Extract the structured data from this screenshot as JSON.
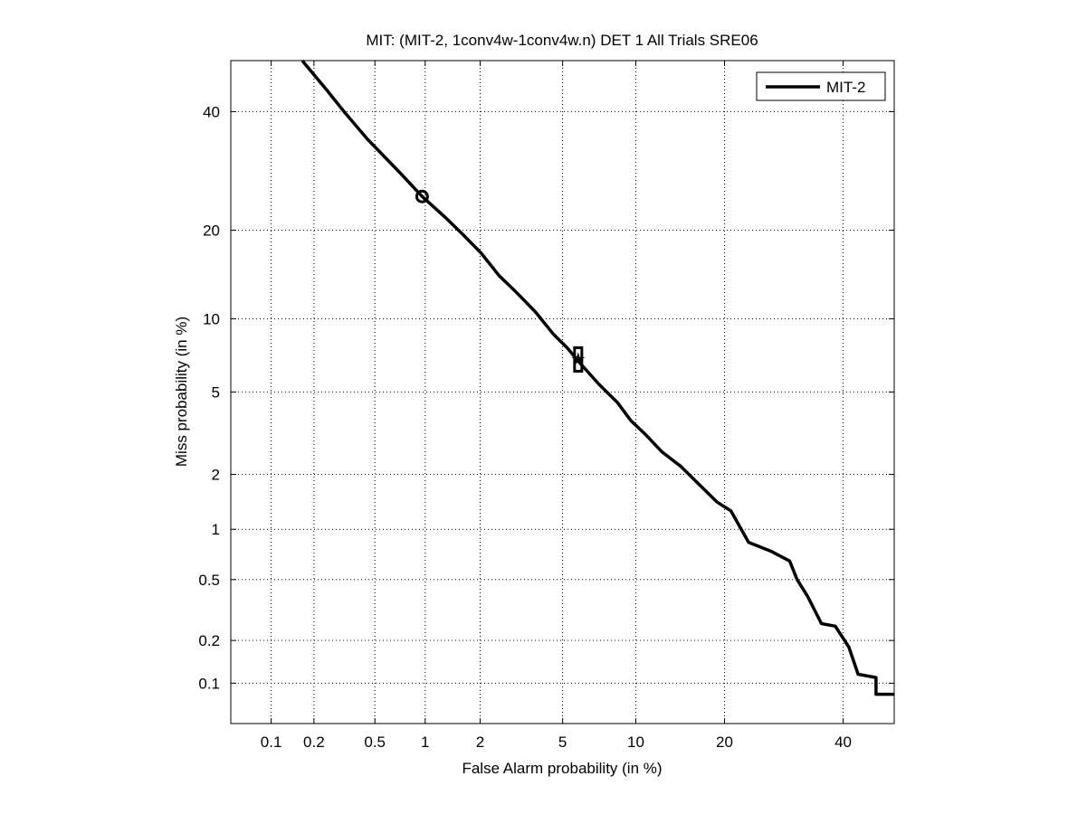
{
  "chart_data": {
    "type": "line",
    "scale": "probit",
    "title": "MIT: (MIT-2, 1conv4w-1conv4w.n) DET 1 All Trials SRE06",
    "xlabel": "False Alarm probability (in %)",
    "ylabel": "Miss probability (in %)",
    "xlim": [
      0.05,
      50
    ],
    "ylim": [
      0.05,
      50
    ],
    "xticks": [
      0.1,
      0.2,
      0.5,
      1,
      2,
      5,
      10,
      20,
      40
    ],
    "xtick_labels": [
      "0.1",
      "0.2",
      "0.5",
      "1",
      "2",
      "5",
      "10",
      "20",
      "40"
    ],
    "yticks": [
      0.1,
      0.2,
      0.5,
      1,
      2,
      5,
      10,
      20,
      40
    ],
    "ytick_labels": [
      "0.1",
      "0.2",
      "0.5",
      "1",
      "2",
      "5",
      "10",
      "20",
      "40"
    ],
    "grid": true,
    "legend_position": "top-right",
    "series": [
      {
        "name": "MIT-2",
        "color": "#000000",
        "fa": [
          0.166,
          0.244,
          0.32,
          0.45,
          0.7,
          0.96,
          1.29,
          1.62,
          2.02,
          2.5,
          3.08,
          3.76,
          4.56,
          5.24,
          6.0,
          7.16,
          8.47,
          9.57,
          10.8,
          12.5,
          14.5,
          16.6,
          19.0,
          20.9,
          23.5,
          27.2,
          30.2,
          31.5,
          33.4,
          35.9,
          38.5,
          41.1,
          42.9,
          46.4,
          46.4,
          50
        ],
        "miss": [
          50,
          44.2,
          39.9,
          34.8,
          29.1,
          25.0,
          21.9,
          19.4,
          17.0,
          14.3,
          12.4,
          10.6,
          8.7,
          7.7,
          6.6,
          5.4,
          4.5,
          3.7,
          3.2,
          2.6,
          2.2,
          1.78,
          1.42,
          1.27,
          0.84,
          0.74,
          0.65,
          0.5,
          0.39,
          0.26,
          0.25,
          0.18,
          0.116,
          0.11,
          0.083,
          0.083
        ]
      }
    ],
    "markers": [
      {
        "type": "circle",
        "fa": 0.96,
        "miss": 25.0
      },
      {
        "type": "box",
        "fa": 5.85,
        "miss": 6.9
      },
      {
        "type": "star",
        "fa": 5.85,
        "miss": 6.9
      }
    ]
  }
}
